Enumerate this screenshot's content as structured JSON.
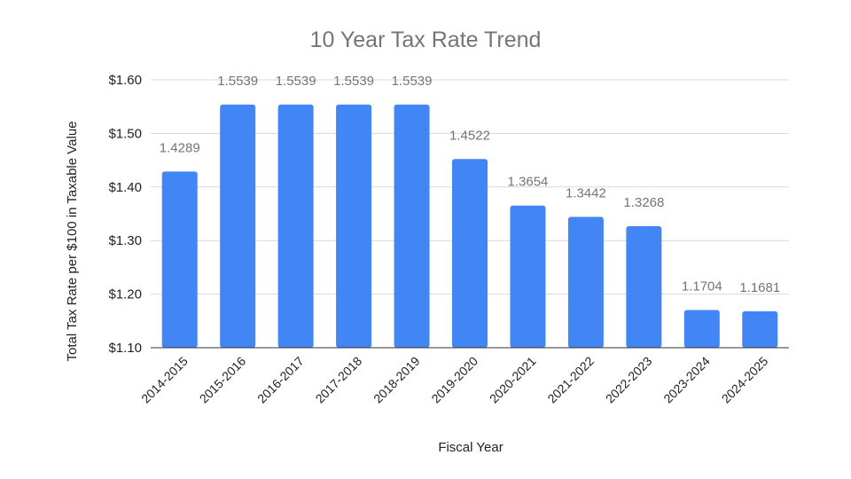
{
  "chart_data": {
    "type": "bar",
    "title": "10 Year Tax Rate Trend",
    "xlabel": "Fiscal Year",
    "ylabel": "Total Tax Rate per $100 in Taxable Value",
    "categories": [
      "2014-2015",
      "2015-2016",
      "2016-2017",
      "2017-2018",
      "2018-2019",
      "2019-2020",
      "2020-2021",
      "2021-2022",
      "2022-2023",
      "2023-2024",
      "2024-2025"
    ],
    "values": [
      1.4289,
      1.5539,
      1.5539,
      1.5539,
      1.5539,
      1.4522,
      1.3654,
      1.3442,
      1.3268,
      1.1704,
      1.1681
    ],
    "data_labels": [
      "1.4289",
      "1.5539",
      "1.5539",
      "1.5539",
      "1.5539",
      "1.4522",
      "1.3654",
      "1.3442",
      "1.3268",
      "1.1704",
      "1.1681"
    ],
    "ylim": [
      1.1,
      1.6
    ],
    "y_ticks": [
      1.1,
      1.2,
      1.3,
      1.4,
      1.5,
      1.6
    ],
    "y_tick_labels": [
      "$1.10",
      "$1.20",
      "$1.30",
      "$1.40",
      "$1.50",
      "$1.60"
    ],
    "grid": true,
    "legend": "none",
    "bar_color": "#4285f4"
  }
}
